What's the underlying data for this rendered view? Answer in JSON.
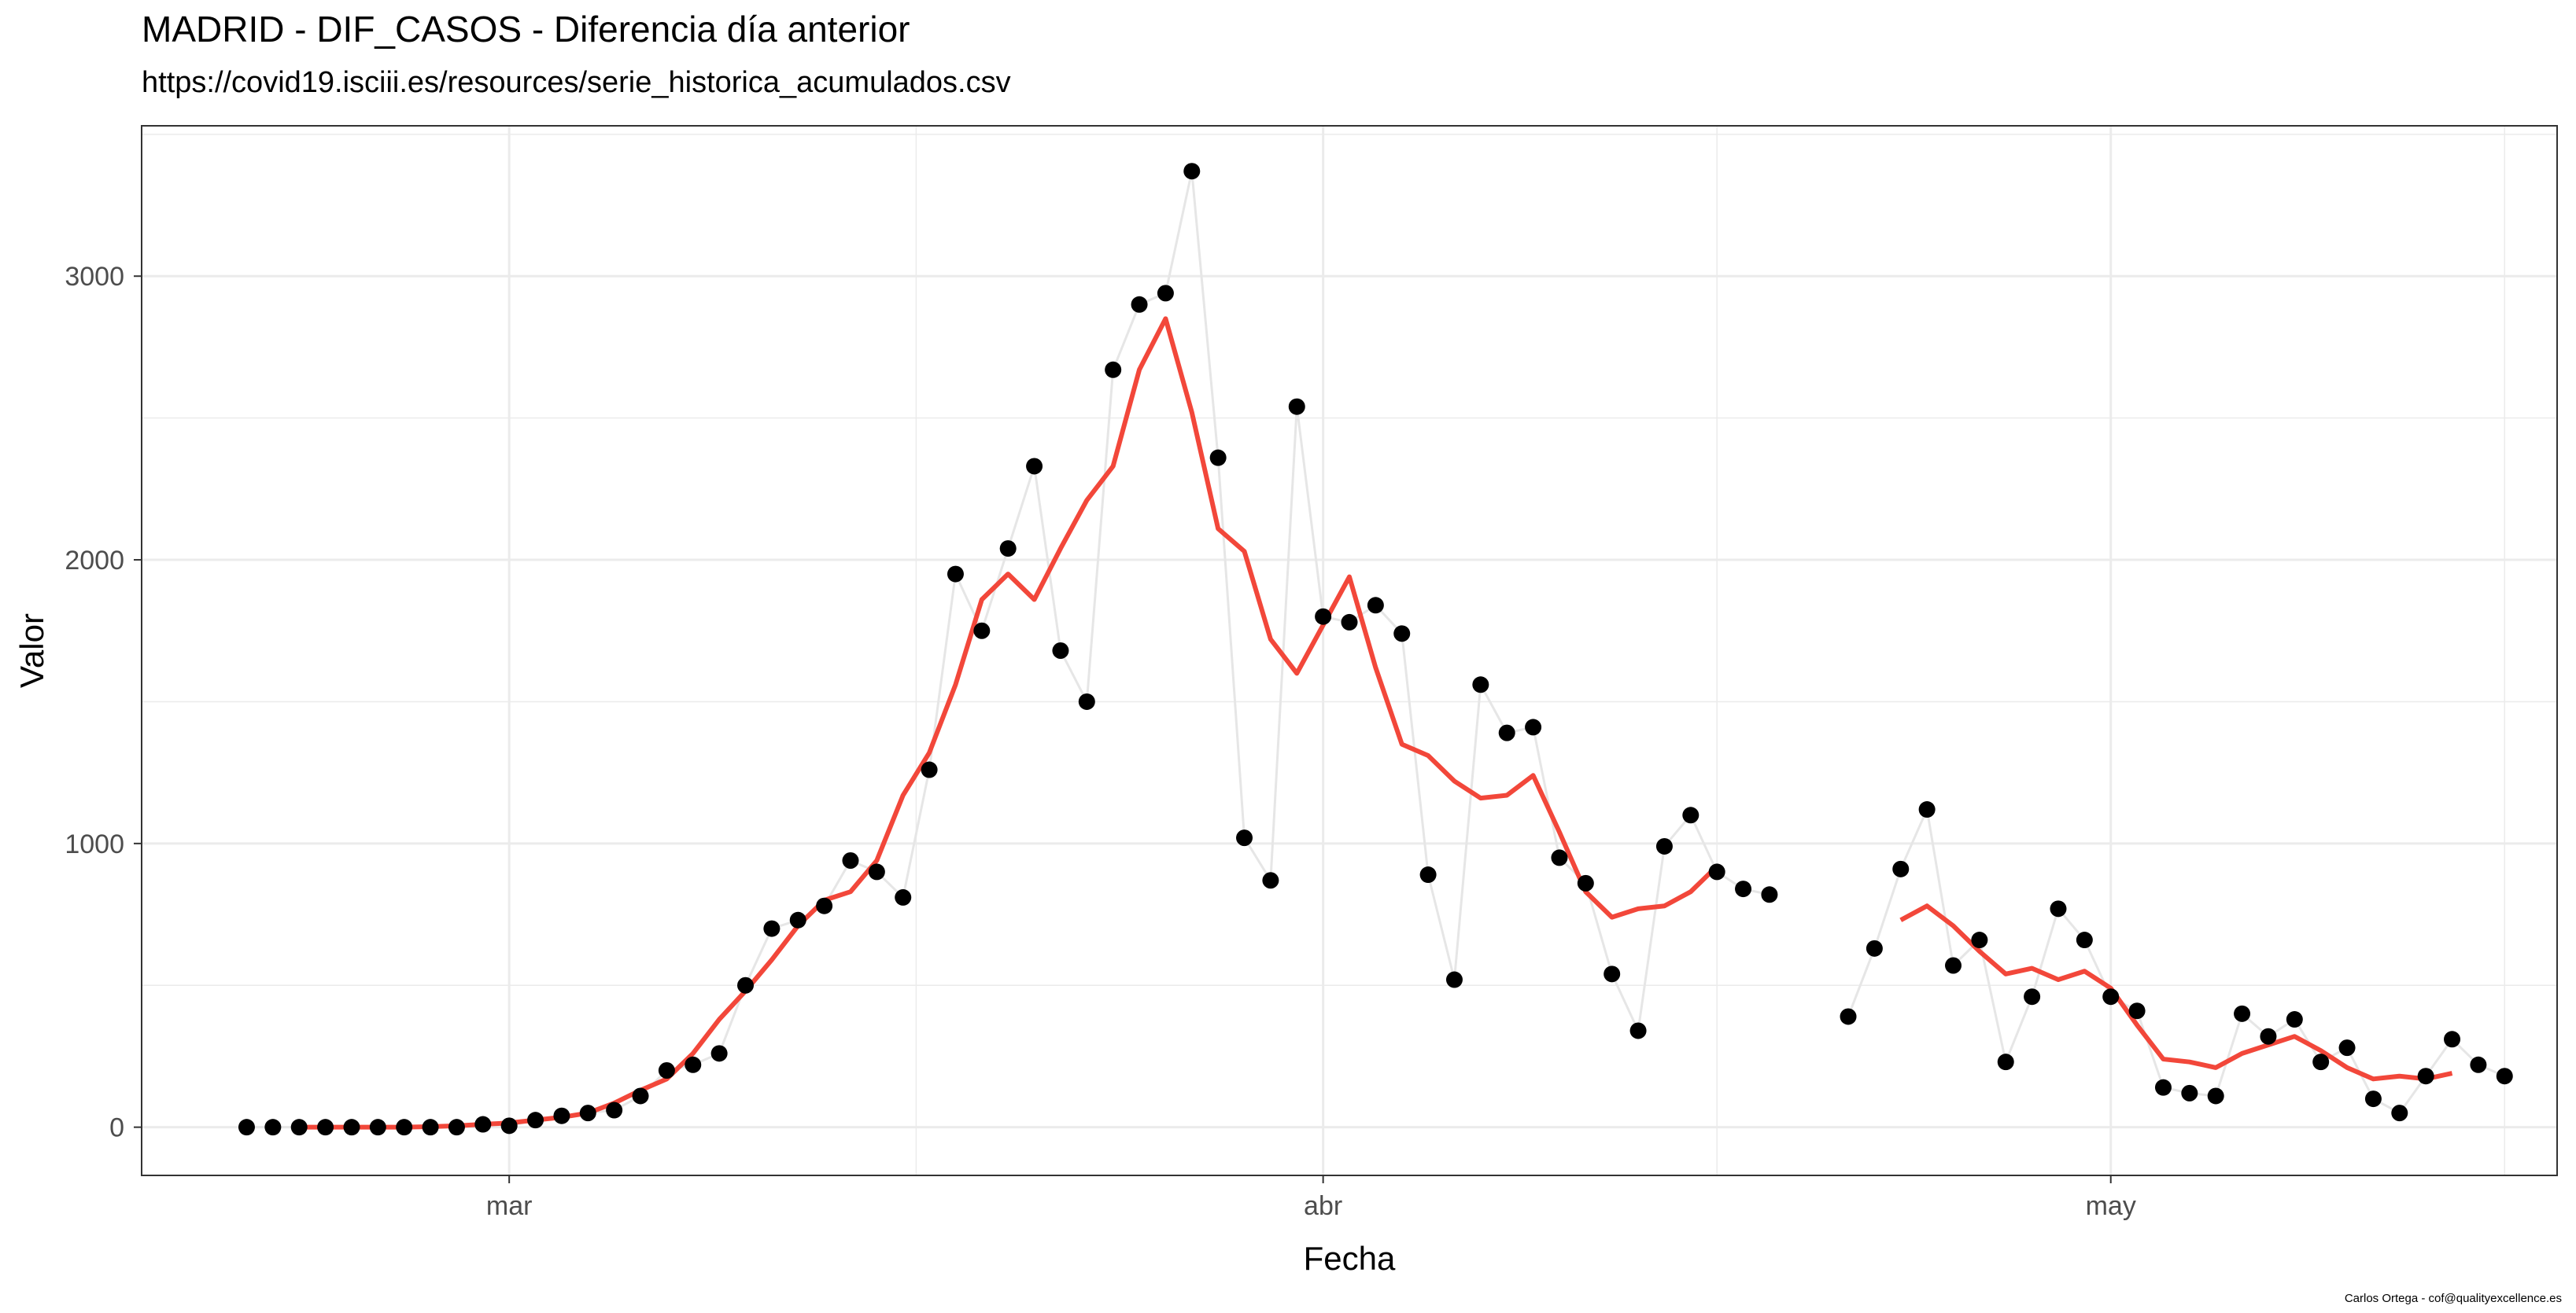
{
  "chart_data": {
    "type": "scatter",
    "title": "MADRID - DIF_CASOS - Diferencia día anterior",
    "subtitle": "https://covid19.isciii.es/resources/serie_historica_acumulados.csv",
    "caption": "Carlos Ortega - cof@qualityexcellence.es",
    "xlabel": "Fecha",
    "ylabel": "Valor",
    "x_ticks": [
      {
        "label": "mar",
        "date": "2020-03-01"
      },
      {
        "label": "abr",
        "date": "2020-04-01"
      },
      {
        "label": "may",
        "date": "2020-05-01"
      }
    ],
    "y_ticks": [
      "0",
      "1000",
      "2000",
      "3000"
    ],
    "ylim": [
      -170,
      3530
    ],
    "xlim": [
      "2020-02-16",
      "2020-05-18"
    ],
    "grid": true,
    "colors": {
      "points": "#000000",
      "connector": "#e6e6e6",
      "moving_average": "#f2473a",
      "grid": "#ebebeb",
      "panel_border": "#333333"
    },
    "series": [
      {
        "values": [
          [
            "2020-02-20",
            0
          ],
          [
            "2020-02-21",
            0
          ],
          [
            "2020-02-22",
            0
          ],
          [
            "2020-02-23",
            0
          ],
          [
            "2020-02-24",
            0
          ],
          [
            "2020-02-25",
            0
          ],
          [
            "2020-02-26",
            0
          ],
          [
            "2020-02-27",
            0
          ],
          [
            "2020-02-28",
            0
          ],
          [
            "2020-02-29",
            10
          ],
          [
            "2020-03-01",
            5
          ],
          [
            "2020-03-02",
            25
          ],
          [
            "2020-03-03",
            40
          ],
          [
            "2020-03-04",
            50
          ],
          [
            "2020-03-05",
            60
          ],
          [
            "2020-03-06",
            110
          ],
          [
            "2020-03-07",
            200
          ],
          [
            "2020-03-08",
            220
          ],
          [
            "2020-03-09",
            260
          ],
          [
            "2020-03-10",
            500
          ],
          [
            "2020-03-11",
            700
          ],
          [
            "2020-03-12",
            730
          ],
          [
            "2020-03-13",
            780
          ],
          [
            "2020-03-14",
            940
          ],
          [
            "2020-03-15",
            900
          ],
          [
            "2020-03-16",
            810
          ],
          [
            "2020-03-17",
            1260
          ],
          [
            "2020-03-18",
            1950
          ],
          [
            "2020-03-19",
            1750
          ],
          [
            "2020-03-20",
            2040
          ],
          [
            "2020-03-21",
            2330
          ],
          [
            "2020-03-22",
            1680
          ],
          [
            "2020-03-23",
            1500
          ],
          [
            "2020-03-24",
            2670
          ],
          [
            "2020-03-25",
            2900
          ],
          [
            "2020-03-26",
            2940
          ],
          [
            "2020-03-27",
            3370
          ],
          [
            "2020-03-28",
            2360
          ],
          [
            "2020-03-29",
            1020
          ],
          [
            "2020-03-30",
            870
          ],
          [
            "2020-03-31",
            2540
          ],
          [
            "2020-04-01",
            1800
          ],
          [
            "2020-04-02",
            1780
          ],
          [
            "2020-04-03",
            1840
          ],
          [
            "2020-04-04",
            1740
          ],
          [
            "2020-04-05",
            890
          ],
          [
            "2020-04-06",
            520
          ],
          [
            "2020-04-07",
            1560
          ],
          [
            "2020-04-08",
            1390
          ],
          [
            "2020-04-09",
            1410
          ],
          [
            "2020-04-10",
            950
          ],
          [
            "2020-04-11",
            860
          ],
          [
            "2020-04-12",
            540
          ],
          [
            "2020-04-13",
            340
          ],
          [
            "2020-04-14",
            990
          ],
          [
            "2020-04-15",
            1100
          ],
          [
            "2020-04-16",
            900
          ],
          [
            "2020-04-17",
            840
          ],
          [
            "2020-04-18",
            820
          ],
          [
            "2020-04-19",
            null
          ],
          [
            "2020-04-20",
            null
          ],
          [
            "2020-04-21",
            390
          ],
          [
            "2020-04-22",
            630
          ],
          [
            "2020-04-23",
            910
          ],
          [
            "2020-04-24",
            1120
          ],
          [
            "2020-04-25",
            570
          ],
          [
            "2020-04-26",
            660
          ],
          [
            "2020-04-27",
            230
          ],
          [
            "2020-04-28",
            460
          ],
          [
            "2020-04-29",
            770
          ],
          [
            "2020-04-30",
            660
          ],
          [
            "2020-05-01",
            460
          ],
          [
            "2020-05-02",
            410
          ],
          [
            "2020-05-03",
            140
          ],
          [
            "2020-05-04",
            120
          ],
          [
            "2020-05-05",
            110
          ],
          [
            "2020-05-06",
            400
          ],
          [
            "2020-05-07",
            320
          ],
          [
            "2020-05-08",
            380
          ],
          [
            "2020-05-09",
            230
          ],
          [
            "2020-05-10",
            280
          ],
          [
            "2020-05-11",
            100
          ],
          [
            "2020-05-12",
            50
          ],
          [
            "2020-05-13",
            180
          ],
          [
            "2020-05-14",
            310
          ],
          [
            "2020-05-15",
            220
          ],
          [
            "2020-05-16",
            180
          ]
        ]
      },
      {
        "type": "line",
        "values": [
          [
            "2020-02-22",
            0
          ],
          [
            "2020-02-23",
            0
          ],
          [
            "2020-02-24",
            0
          ],
          [
            "2020-02-25",
            0
          ],
          [
            "2020-02-26",
            0
          ],
          [
            "2020-02-27",
            2
          ],
          [
            "2020-02-28",
            5
          ],
          [
            "2020-02-29",
            10
          ],
          [
            "2020-03-01",
            15
          ],
          [
            "2020-03-02",
            25
          ],
          [
            "2020-03-03",
            35
          ],
          [
            "2020-03-04",
            50
          ],
          [
            "2020-03-05",
            85
          ],
          [
            "2020-03-06",
            130
          ],
          [
            "2020-03-07",
            170
          ],
          [
            "2020-03-08",
            260
          ],
          [
            "2020-03-09",
            380
          ],
          [
            "2020-03-10",
            480
          ],
          [
            "2020-03-11",
            590
          ],
          [
            "2020-03-12",
            710
          ],
          [
            "2020-03-13",
            800
          ],
          [
            "2020-03-14",
            830
          ],
          [
            "2020-03-15",
            940
          ],
          [
            "2020-03-16",
            1170
          ],
          [
            "2020-03-17",
            1320
          ],
          [
            "2020-03-18",
            1560
          ],
          [
            "2020-03-19",
            1860
          ],
          [
            "2020-03-20",
            1950
          ],
          [
            "2020-03-21",
            1860
          ],
          [
            "2020-03-22",
            2040
          ],
          [
            "2020-03-23",
            2210
          ],
          [
            "2020-03-24",
            2330
          ],
          [
            "2020-03-25",
            2670
          ],
          [
            "2020-03-26",
            2850
          ],
          [
            "2020-03-27",
            2520
          ],
          [
            "2020-03-28",
            2110
          ],
          [
            "2020-03-29",
            2030
          ],
          [
            "2020-03-30",
            1720
          ],
          [
            "2020-03-31",
            1600
          ],
          [
            "2020-04-01",
            1770
          ],
          [
            "2020-04-02",
            1940
          ],
          [
            "2020-04-03",
            1620
          ],
          [
            "2020-04-04",
            1350
          ],
          [
            "2020-04-05",
            1310
          ],
          [
            "2020-04-06",
            1220
          ],
          [
            "2020-04-07",
            1160
          ],
          [
            "2020-04-08",
            1170
          ],
          [
            "2020-04-09",
            1240
          ],
          [
            "2020-04-10",
            1040
          ],
          [
            "2020-04-11",
            830
          ],
          [
            "2020-04-12",
            740
          ],
          [
            "2020-04-13",
            770
          ],
          [
            "2020-04-14",
            780
          ],
          [
            "2020-04-15",
            830
          ],
          [
            "2020-04-16",
            920
          ],
          [
            "2020-04-17",
            null
          ],
          [
            "2020-04-18",
            null
          ],
          [
            "2020-04-19",
            null
          ],
          [
            "2020-04-20",
            null
          ],
          [
            "2020-04-21",
            null
          ],
          [
            "2020-04-22",
            null
          ],
          [
            "2020-04-23",
            730
          ],
          [
            "2020-04-24",
            780
          ],
          [
            "2020-04-25",
            710
          ],
          [
            "2020-04-26",
            620
          ],
          [
            "2020-04-27",
            540
          ],
          [
            "2020-04-28",
            560
          ],
          [
            "2020-04-29",
            520
          ],
          [
            "2020-04-30",
            550
          ],
          [
            "2020-05-01",
            490
          ],
          [
            "2020-05-02",
            360
          ],
          [
            "2020-05-03",
            240
          ],
          [
            "2020-05-04",
            230
          ],
          [
            "2020-05-05",
            210
          ],
          [
            "2020-05-06",
            260
          ],
          [
            "2020-05-07",
            290
          ],
          [
            "2020-05-08",
            320
          ],
          [
            "2020-05-09",
            270
          ],
          [
            "2020-05-10",
            210
          ],
          [
            "2020-05-11",
            170
          ],
          [
            "2020-05-12",
            180
          ],
          [
            "2020-05-13",
            170
          ],
          [
            "2020-05-14",
            190
          ]
        ]
      }
    ]
  }
}
